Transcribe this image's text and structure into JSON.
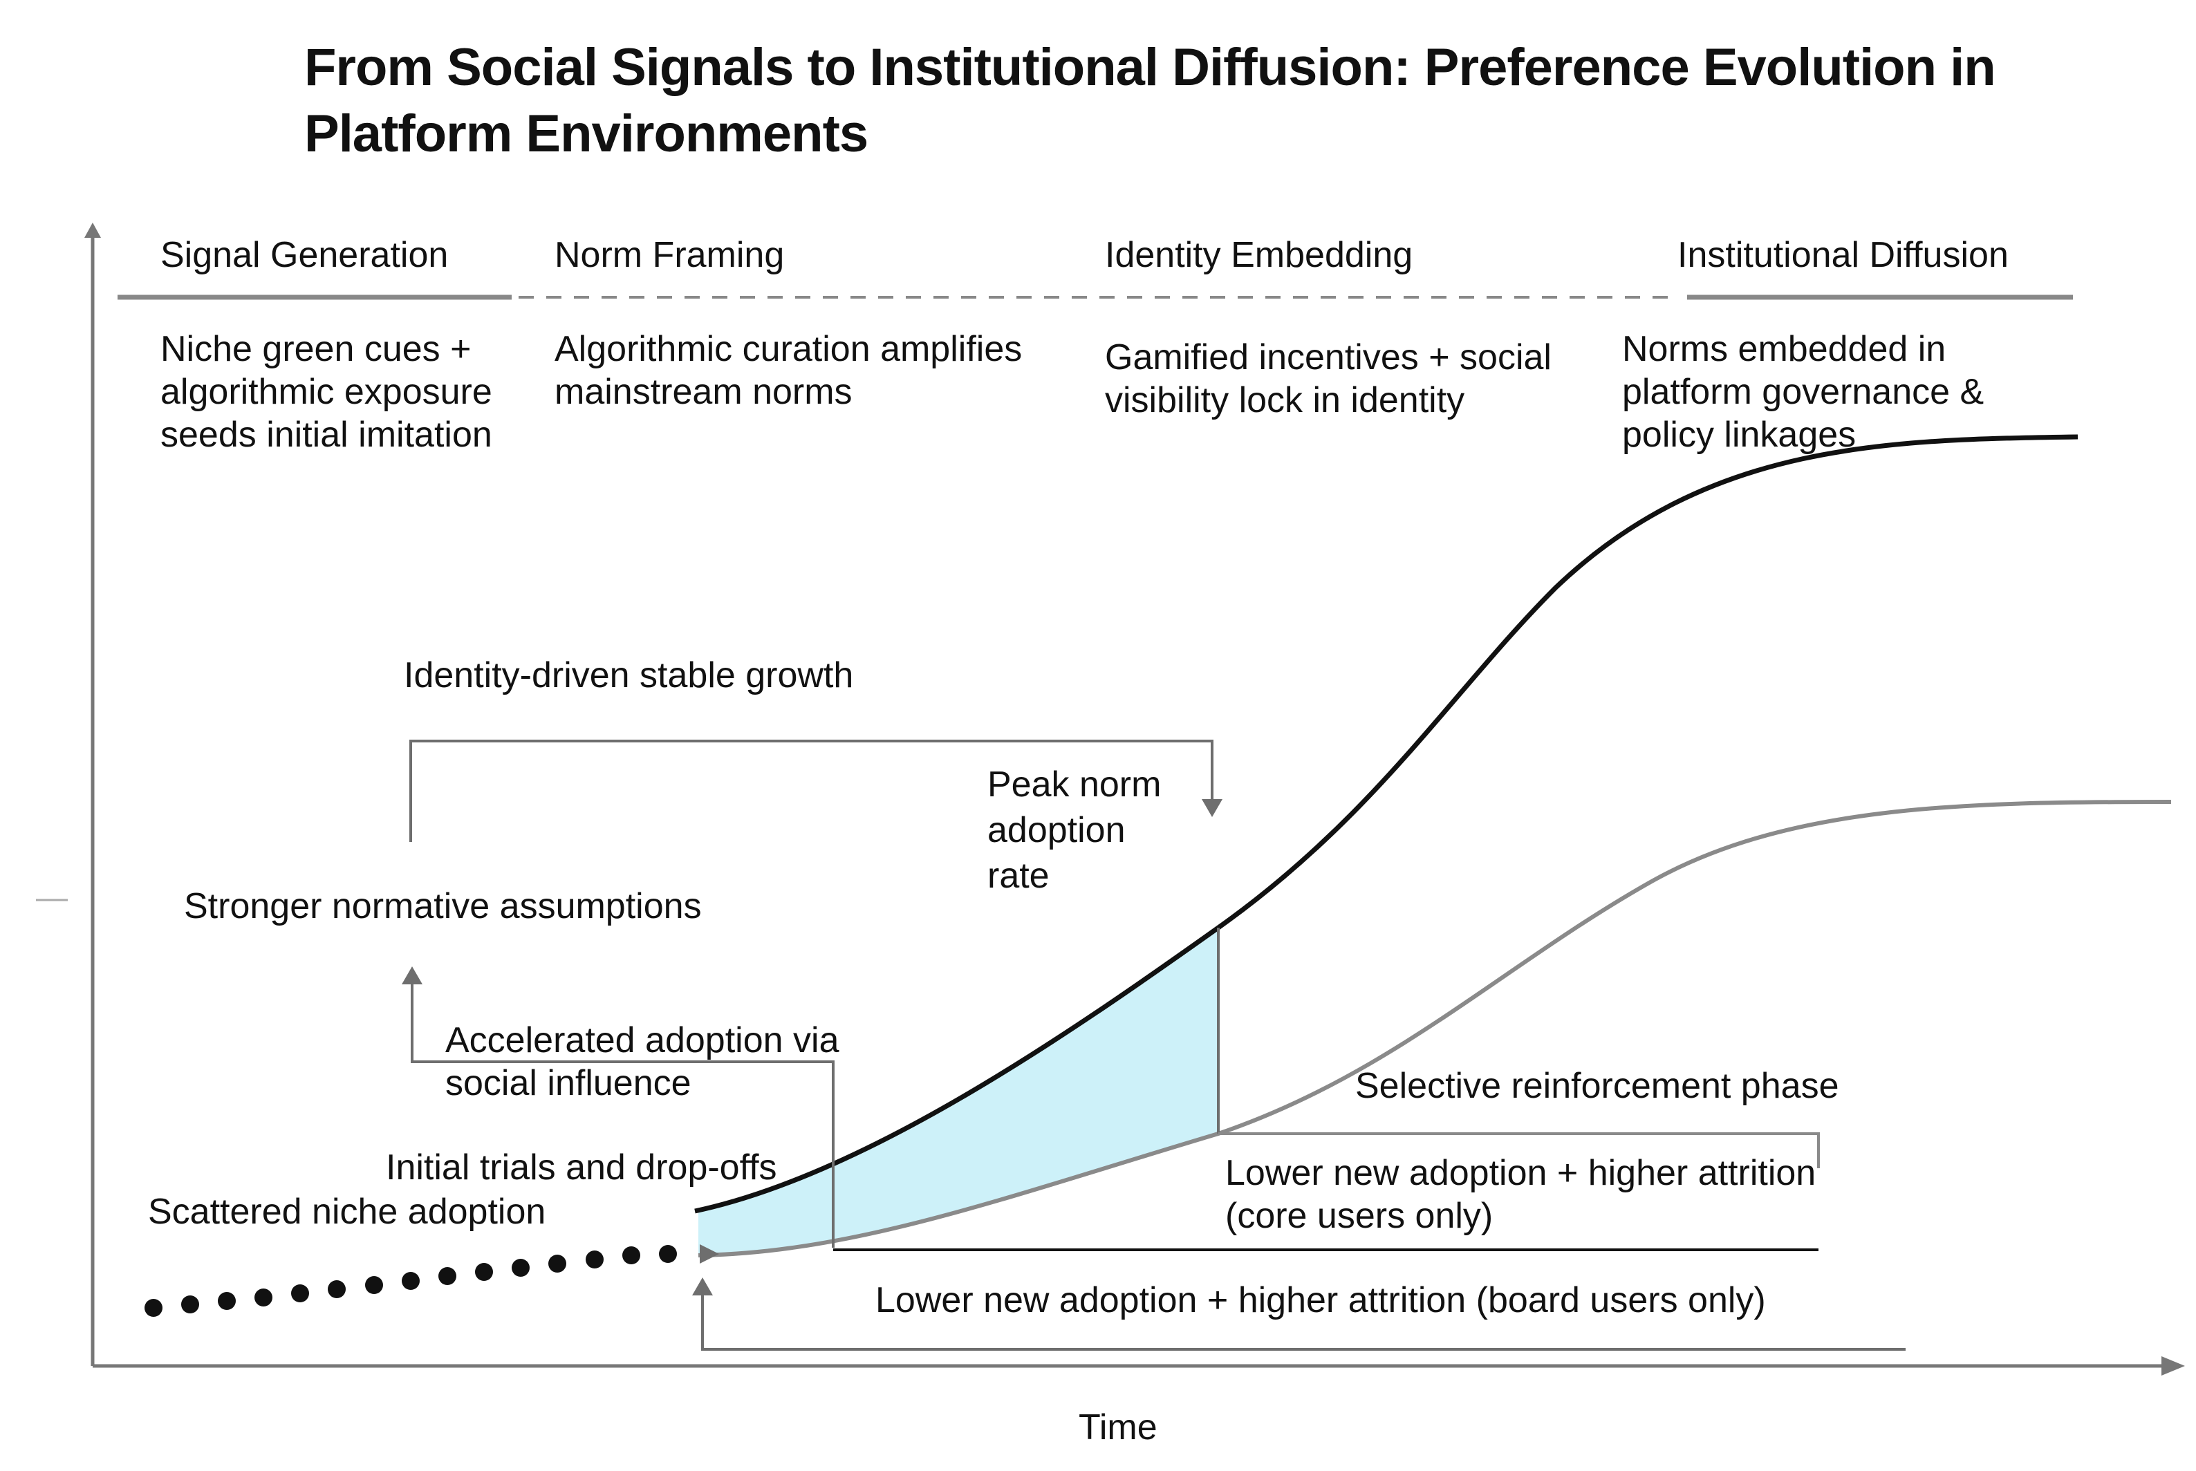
{
  "title": "From Social Signals to Institutional Diffusion: Preference Evolution in Platform Environments",
  "x_axis_label": "Time",
  "phases": [
    {
      "name": "Signal Generation",
      "description": "Niche green cues + algorithmic exposure seeds initial imitation"
    },
    {
      "name": "Norm Framing",
      "description": "Algorithmic curation amplifies mainstream norms"
    },
    {
      "name": "Identity Embedding",
      "description": "Gamified incentives + social visibility lock in identity"
    },
    {
      "name": "Institutional Diffusion",
      "description": "Norms embedded in platform governance & policy linkages"
    }
  ],
  "annotations": {
    "identity_growth": "Identity-driven stable growth",
    "peak_rate": "Peak norm adoption rate",
    "stronger_norms": "Stronger normative assumptions",
    "accelerated": "Accelerated adoption via social influence",
    "initial_trials": "Initial trials and drop-offs",
    "scattered": "Scattered niche adoption",
    "selective": "Selective reinforcement phase",
    "core_users": "Lower new adoption + higher attrition (core users only)",
    "board_users": "Lower new adoption + higher attrition (board users only)"
  },
  "colors": {
    "upper_curve": "#111111",
    "lower_curve": "#8a8a8a",
    "shaded_area": "#cdf1f9",
    "axis": "#777777",
    "connector": "#6e6e6e"
  }
}
